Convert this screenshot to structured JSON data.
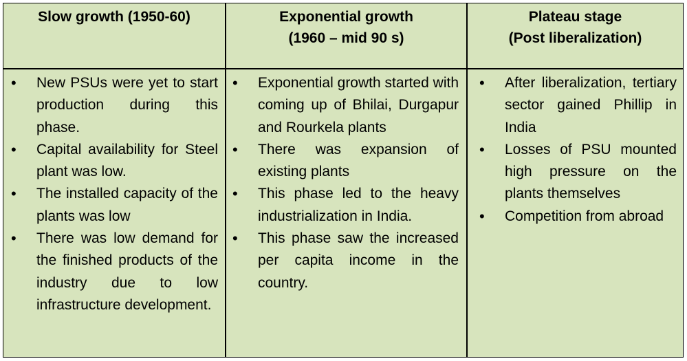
{
  "headers": [
    {
      "line1": "Slow growth (1950-60)",
      "line2": ""
    },
    {
      "line1": "Exponential growth",
      "line2": "(1960 – mid 90 s)"
    },
    {
      "line1": "Plateau stage",
      "line2": "(Post liberalization)"
    }
  ],
  "columns": [
    {
      "items": [
        "New PSUs were yet to start production during this phase.",
        "Capital availability for Steel plant was low.",
        "The installed capacity of the plants was low",
        "There was low demand for the finished products of the industry due to low infrastructure development."
      ]
    },
    {
      "items": [
        "Exponential growth started with coming up of Bhilai, Durgapur and Rourkela plants",
        "There was expansion of existing plants",
        "This phase led to the heavy industrialization in India.",
        "This phase saw the increased per capita income in the country."
      ]
    },
    {
      "items": [
        "After liberalization, tertiary sector gained Phillip in India",
        "Losses of PSU mounted high pressure on the plants themselves",
        "Competition from abroad"
      ]
    }
  ],
  "colors": {
    "cell_background": "#d7e4bd",
    "border": "#000000"
  }
}
